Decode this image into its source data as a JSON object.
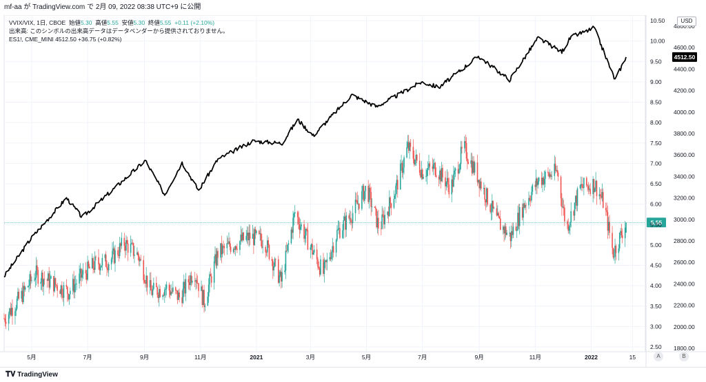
{
  "header": {
    "publish_line": "mf-aa が TradingView.com で 2月 09, 2022 08:38 UTC+9 に公開"
  },
  "legend": {
    "line1": {
      "symbol": "VVIX/VIX, 1日, CBOE",
      "open_label": "始値",
      "open": "5.30",
      "high_label": "高値",
      "high": "5.55",
      "low_label": "安値",
      "low": "5.30",
      "close_label": "終値",
      "close": "5.55",
      "change": "+0.11 (+2.10%)"
    },
    "line2": "出来高: このシンボルの出来高データはデータベンダーから提供されておりません。",
    "line3": "ES1!, CME_MINI  4512.50  +36.75 (+0.82%)"
  },
  "currency_button": "USD",
  "footer": {
    "logo_text": "TradingView",
    "btn_a": "A",
    "btn_b": "B"
  },
  "colors": {
    "up": "#26a69a",
    "down": "#ef5350",
    "line": "#000000",
    "price_line": "#26a69a",
    "es_label_bg": "#000000"
  },
  "chart_data": {
    "type": "line",
    "x_ticks": [
      "5月",
      "7月",
      "9月",
      "11月",
      "2021",
      "3月",
      "5月",
      "7月",
      "9月",
      "11月",
      "2022",
      "15"
    ],
    "x_range": [
      "2020-04-01",
      "2022-02-20"
    ],
    "series": [
      {
        "name": "VVIX/VIX",
        "type": "candlestick",
        "axis": "left-scale",
        "values_approx_close": [
          {
            "x": "2020-04-01",
            "y": 3.2
          },
          {
            "x": "2020-04-20",
            "y": 3.75
          },
          {
            "x": "2020-05-05",
            "y": 4.3
          },
          {
            "x": "2020-05-25",
            "y": 4.05
          },
          {
            "x": "2020-06-10",
            "y": 3.85
          },
          {
            "x": "2020-06-25",
            "y": 4.25
          },
          {
            "x": "2020-07-10",
            "y": 4.55
          },
          {
            "x": "2020-07-25",
            "y": 4.6
          },
          {
            "x": "2020-08-10",
            "y": 5.05
          },
          {
            "x": "2020-08-25",
            "y": 4.75
          },
          {
            "x": "2020-09-08",
            "y": 3.85
          },
          {
            "x": "2020-09-25",
            "y": 3.95
          },
          {
            "x": "2020-10-10",
            "y": 3.7
          },
          {
            "x": "2020-10-25",
            "y": 4.4
          },
          {
            "x": "2020-11-05",
            "y": 3.6
          },
          {
            "x": "2020-11-20",
            "y": 4.8
          },
          {
            "x": "2020-12-05",
            "y": 5.0
          },
          {
            "x": "2020-12-25",
            "y": 5.2
          },
          {
            "x": "2021-01-10",
            "y": 5.1
          },
          {
            "x": "2021-01-28",
            "y": 4.1
          },
          {
            "x": "2021-02-12",
            "y": 5.8
          },
          {
            "x": "2021-02-28",
            "y": 5.0
          },
          {
            "x": "2021-03-15",
            "y": 4.3
          },
          {
            "x": "2021-03-30",
            "y": 5.3
          },
          {
            "x": "2021-04-15",
            "y": 5.75
          },
          {
            "x": "2021-05-01",
            "y": 6.4
          },
          {
            "x": "2021-05-15",
            "y": 5.4
          },
          {
            "x": "2021-06-01",
            "y": 6.3
          },
          {
            "x": "2021-06-15",
            "y": 7.4
          },
          {
            "x": "2021-07-01",
            "y": 6.8
          },
          {
            "x": "2021-07-15",
            "y": 6.9
          },
          {
            "x": "2021-08-01",
            "y": 6.4
          },
          {
            "x": "2021-08-15",
            "y": 7.4
          },
          {
            "x": "2021-09-01",
            "y": 6.6
          },
          {
            "x": "2021-09-20",
            "y": 5.6
          },
          {
            "x": "2021-10-05",
            "y": 5.2
          },
          {
            "x": "2021-10-20",
            "y": 6.0
          },
          {
            "x": "2021-11-05",
            "y": 6.6
          },
          {
            "x": "2021-11-25",
            "y": 6.8
          },
          {
            "x": "2021-12-05",
            "y": 5.4
          },
          {
            "x": "2021-12-20",
            "y": 6.4
          },
          {
            "x": "2022-01-05",
            "y": 6.5
          },
          {
            "x": "2022-01-15",
            "y": 6.0
          },
          {
            "x": "2022-01-25",
            "y": 4.8
          },
          {
            "x": "2022-02-08",
            "y": 5.55
          }
        ]
      },
      {
        "name": "ES1!",
        "type": "line",
        "axis": "right-scale",
        "values_approx": [
          {
            "x": "2020-04-01",
            "y": 2470
          },
          {
            "x": "2020-05-01",
            "y": 2830
          },
          {
            "x": "2020-06-08",
            "y": 3200
          },
          {
            "x": "2020-06-25",
            "y": 3020
          },
          {
            "x": "2020-07-25",
            "y": 3250
          },
          {
            "x": "2020-09-02",
            "y": 3550
          },
          {
            "x": "2020-09-23",
            "y": 3230
          },
          {
            "x": "2020-10-12",
            "y": 3530
          },
          {
            "x": "2020-10-30",
            "y": 3270
          },
          {
            "x": "2020-11-20",
            "y": 3560
          },
          {
            "x": "2020-12-28",
            "y": 3730
          },
          {
            "x": "2021-01-29",
            "y": 3710
          },
          {
            "x": "2021-02-15",
            "y": 3930
          },
          {
            "x": "2021-03-04",
            "y": 3780
          },
          {
            "x": "2021-04-15",
            "y": 4160
          },
          {
            "x": "2021-05-12",
            "y": 4050
          },
          {
            "x": "2021-06-30",
            "y": 4280
          },
          {
            "x": "2021-07-19",
            "y": 4230
          },
          {
            "x": "2021-08-31",
            "y": 4520
          },
          {
            "x": "2021-10-04",
            "y": 4300
          },
          {
            "x": "2021-11-04",
            "y": 4690
          },
          {
            "x": "2021-11-30",
            "y": 4560
          },
          {
            "x": "2021-12-10",
            "y": 4700
          },
          {
            "x": "2021-12-31",
            "y": 4766
          },
          {
            "x": "2022-01-04",
            "y": 4790
          },
          {
            "x": "2022-01-27",
            "y": 4300
          },
          {
            "x": "2022-02-08",
            "y": 4512.5
          }
        ]
      }
    ],
    "left_scale": {
      "ticks": [
        "10.50",
        "10.00",
        "9.50",
        "9.00",
        "8.50",
        "8.00",
        "7.50",
        "7.00",
        "6.50",
        "6.00",
        "5.50",
        "5.00",
        "4.50",
        "4.00",
        "3.50",
        "3.00",
        "2.50"
      ],
      "range": [
        2.5,
        10.5
      ]
    },
    "right_scale": {
      "ticks": [
        "4800.00",
        "4600.00",
        "4400.00",
        "4200.00",
        "4000.00",
        "3800.00",
        "3600.00",
        "3400.00",
        "3200.00",
        "3000.00",
        "2800.00",
        "2600.00",
        "2400.00",
        "2200.00",
        "2000.00",
        "1800.00"
      ],
      "range": [
        1800,
        4800
      ]
    },
    "last_labels": {
      "vvix_vix": "5.55",
      "es": "4512.50"
    },
    "grid": true,
    "legend_position": "top-left"
  }
}
